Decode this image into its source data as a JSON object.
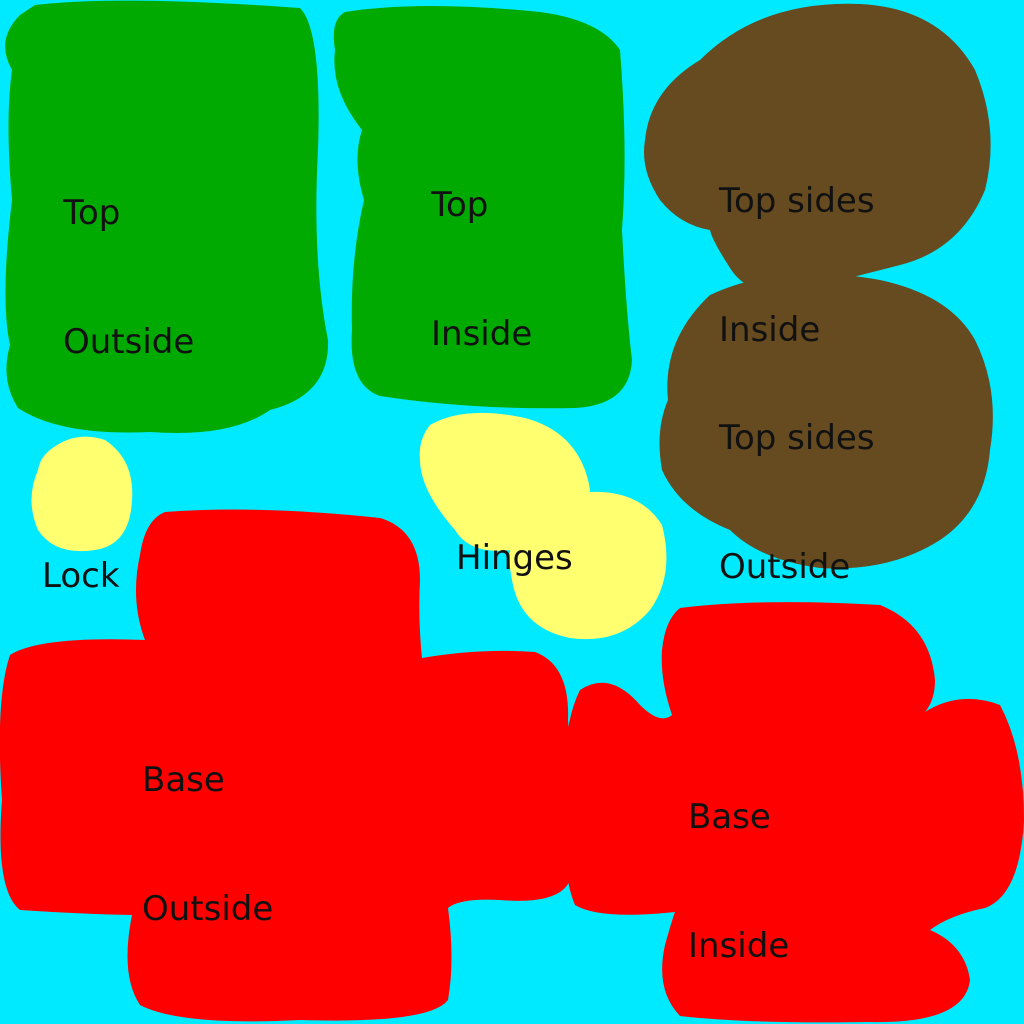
{
  "colors": {
    "background": "#00eaff",
    "top_pieces": "#00aa00",
    "top_sides": "#664a20",
    "small_parts": "#ffff70",
    "base_pieces": "#ff0000",
    "text": "#111111"
  },
  "regions": {
    "top_outside": {
      "line1": "Top",
      "line2": "Outside"
    },
    "top_inside": {
      "line1": "Top",
      "line2": "Inside"
    },
    "top_sides_inside": {
      "line1": "Top sides",
      "line2": "Inside"
    },
    "top_sides_outside": {
      "line1": "Top sides",
      "line2": "Outside"
    },
    "lock": {
      "line1": "Lock"
    },
    "hinges": {
      "line1": "Hinges"
    },
    "base_outside": {
      "line1": "Base",
      "line2": "Outside"
    },
    "base_inside": {
      "line1": "Base",
      "line2": "Inside"
    }
  }
}
